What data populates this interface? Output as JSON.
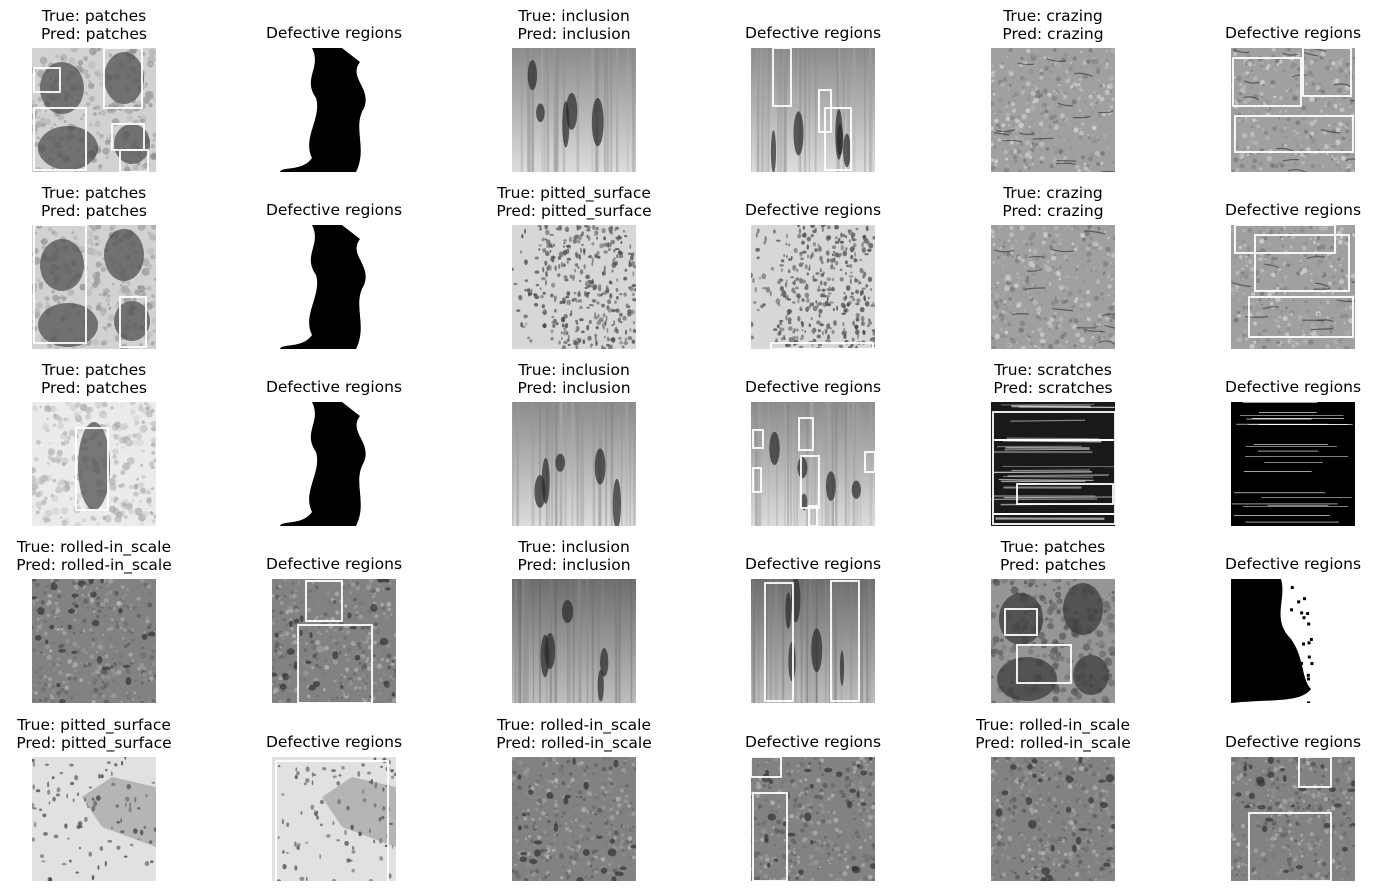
{
  "figure": {
    "rows": [
      [
        {
          "kind": "sample",
          "true_label": "True: patches",
          "pred_label": "Pred: patches",
          "texture": "patches"
        },
        {
          "kind": "region",
          "label": "Defective regions",
          "texture": "mask_patches"
        },
        {
          "kind": "sample",
          "true_label": "True: inclusion",
          "pred_label": "Pred: inclusion",
          "texture": "inclusion"
        },
        {
          "kind": "region",
          "label": "Defective regions",
          "texture": "inclusion"
        },
        {
          "kind": "sample",
          "true_label": "True: crazing",
          "pred_label": "Pred: crazing",
          "texture": "crazing"
        },
        {
          "kind": "region",
          "label": "Defective regions",
          "texture": "crazing"
        }
      ],
      [
        {
          "kind": "sample",
          "true_label": "True: patches",
          "pred_label": "Pred: patches",
          "texture": "patches"
        },
        {
          "kind": "region",
          "label": "Defective regions",
          "texture": "mask_patches"
        },
        {
          "kind": "sample",
          "true_label": "True: pitted_surface",
          "pred_label": "Pred: pitted_surface",
          "texture": "pitted"
        },
        {
          "kind": "region",
          "label": "Defective regions",
          "texture": "pitted"
        },
        {
          "kind": "sample",
          "true_label": "True: crazing",
          "pred_label": "Pred: crazing",
          "texture": "crazing"
        },
        {
          "kind": "region",
          "label": "Defective regions",
          "texture": "crazing"
        }
      ],
      [
        {
          "kind": "sample",
          "true_label": "True: patches",
          "pred_label": "Pred: patches",
          "texture": "patches_light"
        },
        {
          "kind": "region",
          "label": "Defective regions",
          "texture": "mask_patches"
        },
        {
          "kind": "sample",
          "true_label": "True: inclusion",
          "pred_label": "Pred: inclusion",
          "texture": "inclusion"
        },
        {
          "kind": "region",
          "label": "Defective regions",
          "texture": "inclusion"
        },
        {
          "kind": "sample",
          "true_label": "True: scratches",
          "pred_label": "Pred: scratches",
          "texture": "scratches"
        },
        {
          "kind": "region",
          "label": "Defective regions",
          "texture": "scratch_edges"
        }
      ],
      [
        {
          "kind": "sample",
          "true_label": "True: rolled-in_scale",
          "pred_label": "Pred: rolled-in_scale",
          "texture": "rolled"
        },
        {
          "kind": "region",
          "label": "Defective regions",
          "texture": "rolled"
        },
        {
          "kind": "sample",
          "true_label": "True: inclusion",
          "pred_label": "Pred: inclusion",
          "texture": "inclusion_dark"
        },
        {
          "kind": "region",
          "label": "Defective regions",
          "texture": "inclusion_dark"
        },
        {
          "kind": "sample",
          "true_label": "True: patches",
          "pred_label": "Pred: patches",
          "texture": "patches_grey"
        },
        {
          "kind": "region",
          "label": "Defective regions",
          "texture": "mask_side"
        }
      ],
      [
        {
          "kind": "sample",
          "true_label": "True: pitted_surface",
          "pred_label": "Pred: pitted_surface",
          "texture": "pitted_light"
        },
        {
          "kind": "region",
          "label": "Defective regions",
          "texture": "pitted_light"
        },
        {
          "kind": "sample",
          "true_label": "True: rolled-in_scale",
          "pred_label": "Pred: rolled-in_scale",
          "texture": "rolled"
        },
        {
          "kind": "region",
          "label": "Defective regions",
          "texture": "rolled"
        },
        {
          "kind": "sample",
          "true_label": "True: rolled-in_scale",
          "pred_label": "Pred: rolled-in_scale",
          "texture": "rolled"
        },
        {
          "kind": "region",
          "label": "Defective regions",
          "texture": "rolled"
        }
      ]
    ]
  }
}
